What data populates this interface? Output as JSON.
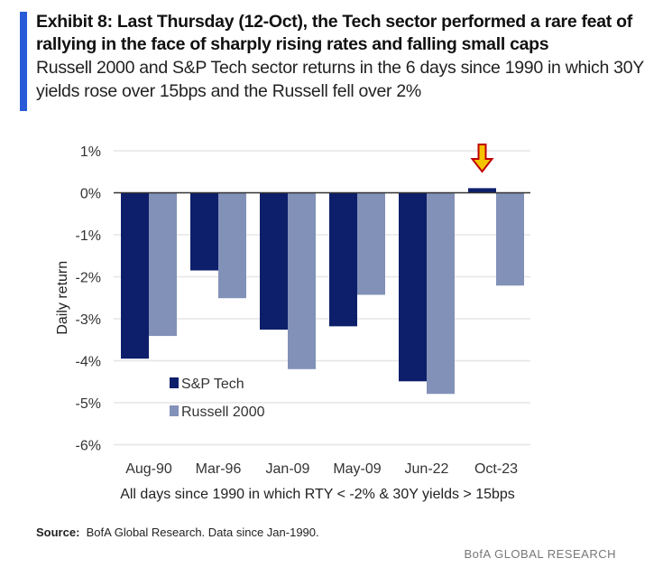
{
  "header": {
    "title": "Exhibit 8: Last Thursday (12-Oct),  the Tech sector performed a rare feat of rallying in the face of sharply rising rates and falling small caps",
    "subtitle": "Russell 2000 and S&P Tech sector returns in the 6 days since 1990 in which 30Y yields rose over 15bps and the Russell fell over 2%"
  },
  "chart_data": {
    "type": "bar",
    "categories": [
      "Aug-90",
      "Mar-96",
      "Jan-09",
      "May-09",
      "Jun-22",
      "Oct-23"
    ],
    "series": [
      {
        "name": "S&P Tech",
        "color": "#0d1f6b",
        "values": [
          -3.95,
          -1.85,
          -3.26,
          -3.18,
          -4.49,
          0.11
        ]
      },
      {
        "name": "Russell 2000",
        "color": "#8291b8",
        "values": [
          -3.41,
          -2.51,
          -4.2,
          -2.43,
          -4.79,
          -2.21
        ]
      }
    ],
    "xlabel": "All days since 1990 in which RTY < -2% & 30Y yields > 15bps",
    "ylabel": "Daily return",
    "ylim": [
      -6,
      1
    ],
    "yticks": [
      "1%",
      "0%",
      "-1%",
      "-2%",
      "-3%",
      "-4%",
      "-5%",
      "-6%"
    ],
    "grid": true,
    "legend_placement": "bottom-left",
    "annotation": {
      "type": "down-arrow",
      "category": "Oct-23",
      "color": "#f5c400",
      "outline": "#c00000"
    }
  },
  "footer": {
    "source_label": "Source:",
    "source_text": "BofA Global Research. Data since Jan-1990.",
    "brand": "BofA GLOBAL RESEARCH"
  }
}
